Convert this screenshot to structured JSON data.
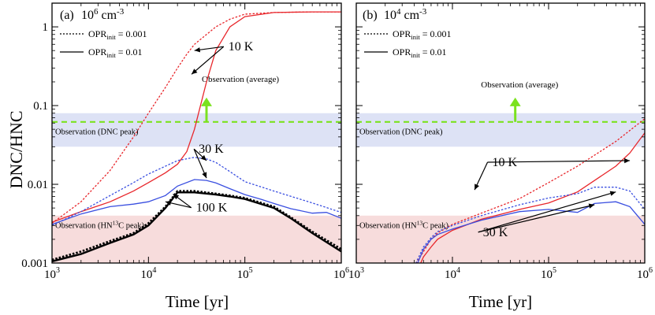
{
  "figure": {
    "ylabel": "DNC/HNC",
    "colors": {
      "red": "#e8262b",
      "blue": "#3a4fe0",
      "black": "#000000",
      "green": "#7be21f",
      "dnc_band": "#dde2f5",
      "hn13c_band": "#f7dcdc"
    }
  },
  "chart_data": [
    {
      "type": "line",
      "panel_label": "(a) 10⁶ cm⁻³",
      "title_letter": "(a)",
      "density_base": "10",
      "density_exp": "6",
      "density_unit": "cm",
      "density_unit_exp": "-3",
      "xlabel": "Time [yr]",
      "ylabel": "DNC/HNC",
      "x_scale": "log",
      "y_scale": "log",
      "xlim": [
        1000,
        1000000
      ],
      "ylim": [
        0.001,
        2
      ],
      "x_ticks": [
        {
          "v": 1000,
          "base": "10",
          "exp": "3"
        },
        {
          "v": 10000,
          "base": "10",
          "exp": "4"
        },
        {
          "v": 100000,
          "base": "10",
          "exp": "5"
        },
        {
          "v": 1000000,
          "base": "10",
          "exp": "6"
        }
      ],
      "y_ticks": [
        {
          "v": 0.001,
          "label": "0.001"
        },
        {
          "v": 0.01,
          "label": "0.01"
        },
        {
          "v": 0.1,
          "label": "0.1"
        },
        {
          "v": 1,
          "label": "1"
        }
      ],
      "legend": [
        {
          "style": "dotted",
          "label": "OPR",
          "sub": "init",
          "value": " = 0.001"
        },
        {
          "style": "solid",
          "label": "OPR",
          "sub": "init",
          "value": " = 0.01"
        }
      ],
      "bands": [
        {
          "name": "DNC peak",
          "label": "Observation (DNC peak)",
          "ymin": 0.03,
          "ymax": 0.08,
          "color": "#dde2f5"
        },
        {
          "name": "HN13C peak",
          "label_pre": "Observation (HN",
          "label_sup": "13",
          "label_post": "C peak)",
          "ymin": 0.001,
          "ymax": 0.004,
          "color": "#f7dcdc"
        }
      ],
      "reference_line": {
        "label": "Observation (average)",
        "y": 0.062,
        "arrow_x": 40000,
        "color": "#7be21f"
      },
      "series": [
        {
          "name": "10 K, OPR 0.001",
          "temp": "10 K",
          "opr": 0.001,
          "style": "dotted",
          "color": "#e8262b",
          "x": [
            1000,
            2000,
            4000,
            7000,
            10000,
            15000,
            20000,
            25000,
            30000,
            40000,
            50000,
            70000,
            100000,
            200000,
            500000,
            1000000
          ],
          "y": [
            0.0032,
            0.006,
            0.015,
            0.04,
            0.08,
            0.17,
            0.3,
            0.45,
            0.6,
            0.8,
            1.0,
            1.25,
            1.45,
            1.52,
            1.55,
            1.55
          ]
        },
        {
          "name": "10 K, OPR 0.01",
          "temp": "10 K",
          "opr": 0.01,
          "style": "solid",
          "color": "#e8262b",
          "x": [
            1000,
            2000,
            4000,
            7000,
            10000,
            15000,
            20000,
            25000,
            30000,
            40000,
            50000,
            70000,
            100000,
            200000,
            500000,
            1000000
          ],
          "y": [
            0.0033,
            0.0045,
            0.006,
            0.0082,
            0.0105,
            0.014,
            0.018,
            0.026,
            0.05,
            0.2,
            0.5,
            1.0,
            1.35,
            1.52,
            1.55,
            1.55
          ]
        },
        {
          "name": "30 K, OPR 0.001",
          "temp": "30 K",
          "opr": 0.001,
          "style": "dotted",
          "color": "#3a4fe0",
          "x": [
            1000,
            2000,
            4000,
            7000,
            10000,
            15000,
            20000,
            30000,
            40000,
            50000,
            70000,
            100000,
            200000,
            500000,
            1000000
          ],
          "y": [
            0.003,
            0.0045,
            0.0072,
            0.0105,
            0.0135,
            0.017,
            0.02,
            0.022,
            0.021,
            0.019,
            0.0145,
            0.0108,
            0.0082,
            0.0058,
            0.0044
          ]
        },
        {
          "name": "30 K, OPR 0.01",
          "temp": "30 K",
          "opr": 0.01,
          "style": "solid",
          "color": "#3a4fe0",
          "x": [
            1000,
            2000,
            4000,
            7000,
            10000,
            15000,
            20000,
            30000,
            40000,
            50000,
            70000,
            100000,
            150000,
            200000,
            300000,
            500000,
            700000,
            1000000
          ],
          "y": [
            0.0031,
            0.0042,
            0.0052,
            0.0056,
            0.006,
            0.0072,
            0.0095,
            0.0115,
            0.0112,
            0.0104,
            0.0088,
            0.0074,
            0.0064,
            0.0057,
            0.0049,
            0.0043,
            0.0044,
            0.0037
          ]
        },
        {
          "name": "100 K, OPR 0.001",
          "temp": "100 K",
          "opr": 0.001,
          "style": "dotted",
          "color": "#000000",
          "x": [
            1000,
            2000,
            4000,
            7000,
            10000,
            15000,
            20000,
            30000,
            50000,
            70000,
            100000,
            200000,
            300000,
            500000,
            1000000
          ],
          "y": [
            0.0011,
            0.0014,
            0.0019,
            0.0024,
            0.0032,
            0.0052,
            0.0082,
            0.0082,
            0.0076,
            0.0072,
            0.0067,
            0.0052,
            0.0038,
            0.0025,
            0.0015
          ]
        },
        {
          "name": "100 K, OPR 0.01",
          "temp": "100 K",
          "opr": 0.01,
          "style": "solid",
          "color": "#000000",
          "x": [
            1000,
            2000,
            4000,
            7000,
            10000,
            15000,
            20000,
            30000,
            50000,
            70000,
            100000,
            200000,
            300000,
            500000,
            1000000
          ],
          "y": [
            0.00105,
            0.0013,
            0.0018,
            0.0023,
            0.003,
            0.005,
            0.0079,
            0.0079,
            0.0074,
            0.007,
            0.0065,
            0.005,
            0.0037,
            0.0024,
            0.0014
          ]
        }
      ],
      "annotations": [
        {
          "text": "10 K",
          "x": 65000,
          "y": 0.5,
          "targets": [
            [
              28000,
              0.25
            ],
            [
              30000,
              0.5
            ]
          ]
        },
        {
          "text": "30 K",
          "x": 32000,
          "y": 0.025,
          "targets": [
            [
              40000,
              0.02
            ],
            [
              40000,
              0.012
            ]
          ]
        },
        {
          "text": "100 K",
          "x": 30000,
          "y": 0.0045,
          "targets": [
            [
              15000,
              0.006
            ],
            [
              18000,
              0.0075
            ]
          ]
        }
      ]
    },
    {
      "type": "line",
      "panel_label": "(b) 10⁴ cm⁻³",
      "title_letter": "(b)",
      "density_base": "10",
      "density_exp": "4",
      "density_unit": "cm",
      "density_unit_exp": "-3",
      "xlabel": "Time [yr]",
      "x_scale": "log",
      "y_scale": "log",
      "xlim": [
        1000,
        1000000
      ],
      "ylim": [
        0.001,
        2
      ],
      "x_ticks": [
        {
          "v": 1000,
          "base": "10",
          "exp": "3"
        },
        {
          "v": 10000,
          "base": "10",
          "exp": "4"
        },
        {
          "v": 100000,
          "base": "10",
          "exp": "5"
        },
        {
          "v": 1000000,
          "base": "10",
          "exp": "6"
        }
      ],
      "legend": [
        {
          "style": "dotted",
          "label": "OPR",
          "sub": "init",
          "value": " = 0.001"
        },
        {
          "style": "solid",
          "label": "OPR",
          "sub": "init",
          "value": " = 0.01"
        }
      ],
      "bands": [
        {
          "name": "DNC peak",
          "label": "Observation (DNC peak)",
          "ymin": 0.03,
          "ymax": 0.08,
          "color": "#dde2f5"
        },
        {
          "name": "HN13C peak",
          "label_pre": "Observation (HN",
          "label_sup": "13",
          "label_post": "C peak)",
          "ymin": 0.001,
          "ymax": 0.004,
          "color": "#f7dcdc"
        }
      ],
      "reference_line": {
        "label": "Observation (average)",
        "y": 0.062,
        "arrow_x": 45000,
        "color": "#7be21f"
      },
      "series": [
        {
          "name": "10 K, OPR 0.001",
          "temp": "10 K",
          "opr": 0.001,
          "style": "dotted",
          "color": "#e8262b",
          "x": [
            4000,
            5000,
            6000,
            7000,
            10000,
            20000,
            50000,
            100000,
            200000,
            500000,
            1000000
          ],
          "y": [
            0.0009,
            0.0014,
            0.002,
            0.0024,
            0.0031,
            0.0043,
            0.0066,
            0.0105,
            0.017,
            0.035,
            0.068
          ]
        },
        {
          "name": "10 K, OPR 0.01",
          "temp": "10 K",
          "opr": 0.01,
          "style": "solid",
          "color": "#e8262b",
          "x": [
            4500,
            5000,
            6000,
            7000,
            10000,
            20000,
            50000,
            100000,
            200000,
            500000,
            700000,
            1000000
          ],
          "y": [
            0.0009,
            0.0012,
            0.0016,
            0.002,
            0.0026,
            0.0036,
            0.0048,
            0.0058,
            0.008,
            0.017,
            0.025,
            0.045
          ]
        },
        {
          "name": "30 K, OPR 0.001",
          "temp": "30 K",
          "opr": 0.001,
          "style": "dotted",
          "color": "#3a4fe0",
          "x": [
            4000,
            5000,
            6000,
            7000,
            10000,
            20000,
            50000,
            100000,
            200000,
            300000,
            500000,
            700000,
            1000000
          ],
          "y": [
            0.0009,
            0.0016,
            0.0021,
            0.0025,
            0.003,
            0.004,
            0.0055,
            0.0067,
            0.0076,
            0.0092,
            0.0092,
            0.0082,
            0.0048
          ]
        },
        {
          "name": "30 K, OPR 0.01",
          "temp": "30 K",
          "opr": 0.01,
          "style": "solid",
          "color": "#3a4fe0",
          "x": [
            4200,
            5000,
            6000,
            7000,
            10000,
            20000,
            50000,
            100000,
            200000,
            300000,
            500000,
            700000,
            1000000
          ],
          "y": [
            0.0009,
            0.0015,
            0.002,
            0.0023,
            0.0027,
            0.0035,
            0.0045,
            0.0048,
            0.0044,
            0.0057,
            0.006,
            0.0052,
            0.0031
          ]
        }
      ],
      "annotations": [
        {
          "text": "10 K",
          "x": 25000,
          "y": 0.017,
          "targets": [
            [
              17000,
              0.0085
            ],
            [
              700000,
              0.02
            ]
          ]
        },
        {
          "text": "30 K",
          "x": 20000,
          "y": 0.0022,
          "targets": [
            [
              300000,
              0.0055
            ],
            [
              500000,
              0.008
            ]
          ]
        }
      ]
    }
  ]
}
